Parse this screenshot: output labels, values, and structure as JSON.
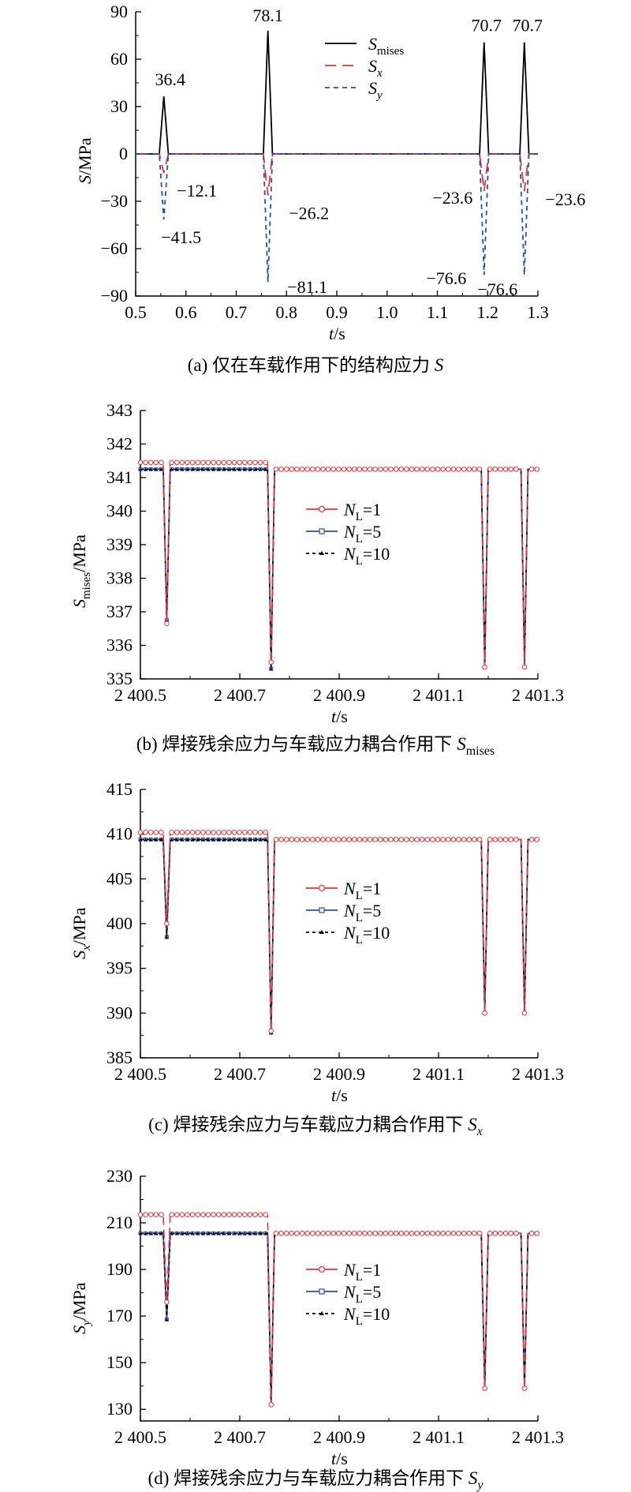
{
  "chart_data": [
    {
      "type": "line",
      "caption": "(a) 仅在车载作用下的结构应力 S",
      "xlabel": "t/s",
      "ylabel": "S/MPa",
      "xlim": [
        0.5,
        1.3
      ],
      "ylim": [
        -90,
        90
      ],
      "xticks": [
        "0.5",
        "0.6",
        "0.7",
        "0.8",
        "0.9",
        "1.0",
        "1.1",
        "1.2",
        "1.3"
      ],
      "yticks": [
        "90",
        "60",
        "30",
        "0",
        "-30",
        "-60",
        "-90"
      ],
      "legend_position": "top-center",
      "series": [
        {
          "name": "S_mises",
          "color": "#000000",
          "dash": "solid",
          "x": [
            0.5,
            0.553,
            0.556,
            0.564,
            1.3
          ],
          "y": [
            0,
            0,
            36.4,
            0,
            0
          ],
          "x2": [
            0.753,
            0.763,
            0.773,
            1.183,
            1.193,
            1.203,
            1.263,
            1.273,
            1.283
          ],
          "peaks": [
            {
              "x": 0.556,
              "y": 36.4
            },
            {
              "x": 0.763,
              "y": 78.1
            },
            {
              "x": 1.193,
              "y": 70.7
            },
            {
              "x": 1.273,
              "y": 70.7
            }
          ]
        },
        {
          "name": "S_x",
          "color": "#e8333a",
          "dash": "long",
          "peaks": [
            {
              "x": 0.556,
              "y": -12.1
            },
            {
              "x": 0.763,
              "y": -26.2
            },
            {
              "x": 1.193,
              "y": -23.6
            },
            {
              "x": 1.273,
              "y": -23.6
            }
          ]
        },
        {
          "name": "S_y",
          "color": "#2a4ea6",
          "dash": "short",
          "peaks": [
            {
              "x": 0.556,
              "y": -41.5
            },
            {
              "x": 0.763,
              "y": -81.1
            },
            {
              "x": 1.193,
              "y": -76.6
            },
            {
              "x": 1.273,
              "y": -76.6
            }
          ]
        }
      ],
      "annotations": [
        {
          "text": "36.4",
          "color": "#000000"
        },
        {
          "text": "78.1",
          "color": "#000000"
        },
        {
          "text": "70.7",
          "color": "#000000"
        },
        {
          "text": "70.7",
          "color": "#000000"
        },
        {
          "text": "−12.1",
          "color": "#e8333a"
        },
        {
          "text": "−26.2",
          "color": "#e8333a"
        },
        {
          "text": "−23.6",
          "color": "#e8333a"
        },
        {
          "text": "−23.6",
          "color": "#e8333a"
        },
        {
          "text": "−41.5",
          "color": "#2a4ea6"
        },
        {
          "text": "−81.1",
          "color": "#2a4ea6"
        },
        {
          "text": "−76.6",
          "color": "#2a4ea6"
        },
        {
          "text": "−76.6",
          "color": "#2a4ea6"
        }
      ]
    },
    {
      "type": "line",
      "caption": "(b) 焊接残余应力与车载应力耦合作用下 S_mises",
      "xlabel": "t/s",
      "ylabel": "S_mises/MPa",
      "xlim": [
        2400.5,
        2401.3
      ],
      "ylim": [
        335,
        343
      ],
      "xticks": [
        "2 400.5",
        "2 400.7",
        "2 400.9",
        "2 401.1",
        "2 401.3"
      ],
      "yticks": [
        "343",
        "342",
        "341",
        "340",
        "339",
        "338",
        "337",
        "336",
        "335"
      ],
      "legend_position": "center",
      "series": [
        {
          "name": "N_L=1",
          "color": "#e8333a",
          "marker": "circle",
          "base": 341.45,
          "base_end": 2400.763,
          "base_after": 341.25,
          "dips": [
            336.65,
            335.5,
            335.35,
            335.35
          ]
        },
        {
          "name": "N_L=5",
          "color": "#2a4ea6",
          "marker": "square",
          "base": 341.25,
          "dips": [
            336.75,
            335.3,
            335.35,
            335.35
          ]
        },
        {
          "name": "N_L=10",
          "color": "#000000",
          "marker": "triangle",
          "base": 341.25,
          "dips": [
            336.75,
            335.3,
            335.35,
            335.35
          ]
        }
      ],
      "dip_x": [
        2400.553,
        2400.763,
        2401.193,
        2401.273
      ]
    },
    {
      "type": "line",
      "caption": "(c) 焊接残余应力与车载应力耦合作用下 S_x",
      "xlabel": "t/s",
      "ylabel": "S_x/MPa",
      "xlim": [
        2400.5,
        2401.3
      ],
      "ylim": [
        385,
        415
      ],
      "xticks": [
        "2 400.5",
        "2 400.7",
        "2 400.9",
        "2 401.1",
        "2 401.3"
      ],
      "yticks": [
        "415",
        "410",
        "405",
        "400",
        "395",
        "390",
        "385"
      ],
      "legend_position": "center",
      "series": [
        {
          "name": "N_L=1",
          "color": "#e8333a",
          "marker": "circle",
          "base": 410.2,
          "base_end": 2400.763,
          "base_after": 409.4,
          "dips": [
            400.0,
            388.0,
            390.0,
            390.0
          ]
        },
        {
          "name": "N_L=5",
          "color": "#2a4ea6",
          "marker": "square",
          "base": 409.4,
          "dips": [
            398.5,
            387.8,
            390.0,
            390.0
          ]
        },
        {
          "name": "N_L=10",
          "color": "#000000",
          "marker": "triangle",
          "base": 409.4,
          "dips": [
            398.5,
            387.8,
            390.0,
            390.0
          ]
        }
      ],
      "dip_x": [
        2400.553,
        2400.763,
        2401.193,
        2401.273
      ]
    },
    {
      "type": "line",
      "caption": "(d) 焊接残余应力与车载应力耦合作用下 S_y",
      "xlabel": "t/s",
      "ylabel": "S_y/MPa",
      "xlim": [
        2400.5,
        2401.3
      ],
      "ylim": [
        125,
        230
      ],
      "xticks": [
        "2 400.5",
        "2 400.7",
        "2 400.9",
        "2 401.1",
        "2 401.3"
      ],
      "yticks": [
        "230",
        "210",
        "190",
        "170",
        "150",
        "130"
      ],
      "legend_position": "center",
      "series": [
        {
          "name": "N_L=1",
          "color": "#e8333a",
          "marker": "circle",
          "base": 213.5,
          "base_end": 2400.763,
          "base_after": 205.5,
          "dips": [
            176.0,
            132.0,
            139.0,
            139.0
          ]
        },
        {
          "name": "N_L=5",
          "color": "#2a4ea6",
          "marker": "square",
          "base": 205.5,
          "dips": [
            168.5,
            132.0,
            139.0,
            139.0
          ]
        },
        {
          "name": "N_L=10",
          "color": "#000000",
          "marker": "triangle",
          "base": 205.5,
          "dips": [
            168.5,
            132.0,
            139.0,
            139.0
          ]
        }
      ],
      "dip_x": [
        2400.553,
        2400.763,
        2401.193,
        2401.273
      ]
    }
  ]
}
